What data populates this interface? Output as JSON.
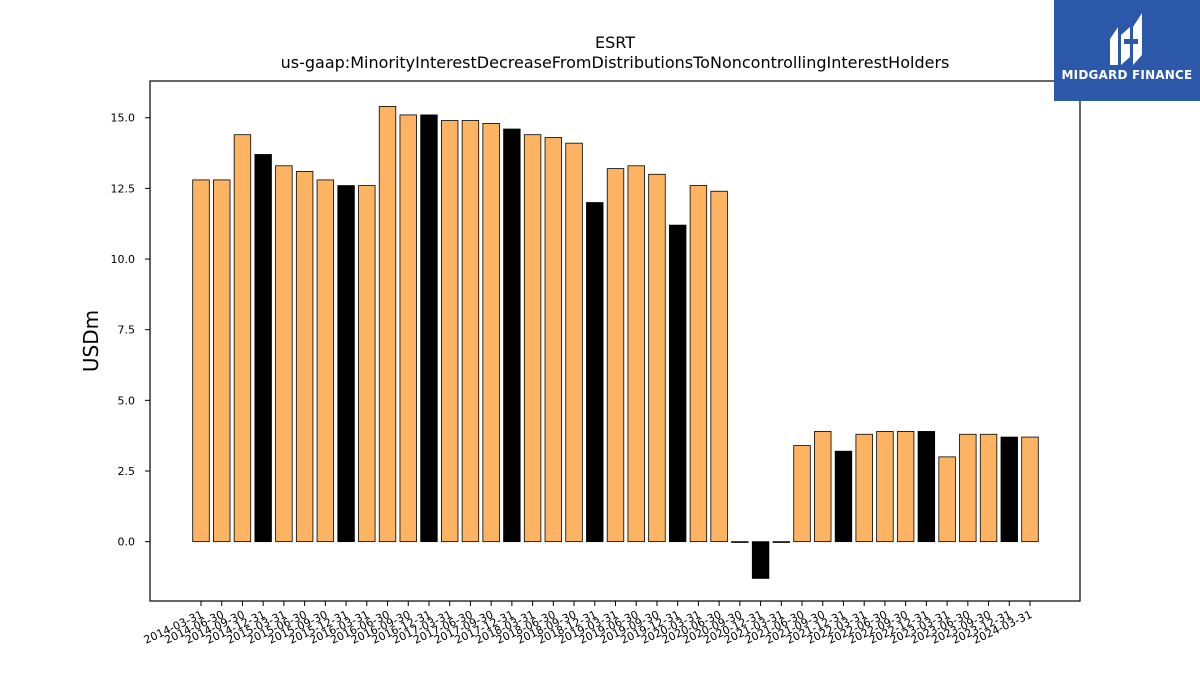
{
  "logo": {
    "text": "MIDGARD FINANCE"
  },
  "colors": {
    "bar_default": "#fdb462",
    "bar_alt": "#000000",
    "edge": "#000000"
  },
  "chart_data": {
    "type": "bar",
    "title": "ESRT",
    "subtitle": "us-gaap:MinorityInterestDecreaseFromDistributionsToNoncontrollingInterestHolders",
    "xlabel": "",
    "ylabel": "USDm",
    "ylim": [
      -2.1,
      16.3
    ],
    "yticks": [
      0.0,
      2.5,
      5.0,
      7.5,
      10.0,
      12.5,
      15.0
    ],
    "ytick_labels": [
      "0.0",
      "2.5",
      "5.0",
      "7.5",
      "10.0",
      "12.5",
      "15.0"
    ],
    "categories": [
      "2014-03-31",
      "2014-06-30",
      "2014-09-30",
      "2014-12-31",
      "2015-03-31",
      "2015-06-30",
      "2015-09-30",
      "2015-12-31",
      "2016-03-31",
      "2016-06-30",
      "2016-09-30",
      "2016-12-31",
      "2017-03-31",
      "2017-06-30",
      "2017-09-30",
      "2017-12-31",
      "2018-03-31",
      "2018-06-30",
      "2018-09-30",
      "2018-12-31",
      "2019-03-31",
      "2019-06-30",
      "2019-09-30",
      "2019-12-31",
      "2020-03-31",
      "2020-06-30",
      "2020-09-30",
      "2020-12-31",
      "2021-03-31",
      "2021-06-30",
      "2021-09-30",
      "2021-12-31",
      "2022-03-31",
      "2022-06-30",
      "2022-09-30",
      "2022-12-31",
      "2023-03-31",
      "2023-06-30",
      "2023-09-30",
      "2023-12-31",
      "2024-03-31"
    ],
    "values": [
      12.8,
      12.8,
      14.4,
      13.7,
      13.3,
      13.1,
      12.8,
      12.6,
      12.6,
      15.4,
      15.1,
      15.1,
      14.9,
      14.9,
      14.8,
      14.6,
      14.4,
      14.3,
      14.1,
      12.0,
      13.2,
      13.3,
      13.0,
      11.2,
      12.6,
      12.4,
      0.0,
      -1.3,
      0.0,
      3.4,
      3.9,
      3.2,
      3.8,
      3.9,
      3.9,
      3.9,
      3.0,
      3.8,
      3.8,
      3.7,
      3.7
    ],
    "highlight_indices": [
      3,
      7,
      11,
      15,
      19,
      23,
      27,
      31,
      35,
      39
    ],
    "grid": false,
    "legend": "none"
  }
}
